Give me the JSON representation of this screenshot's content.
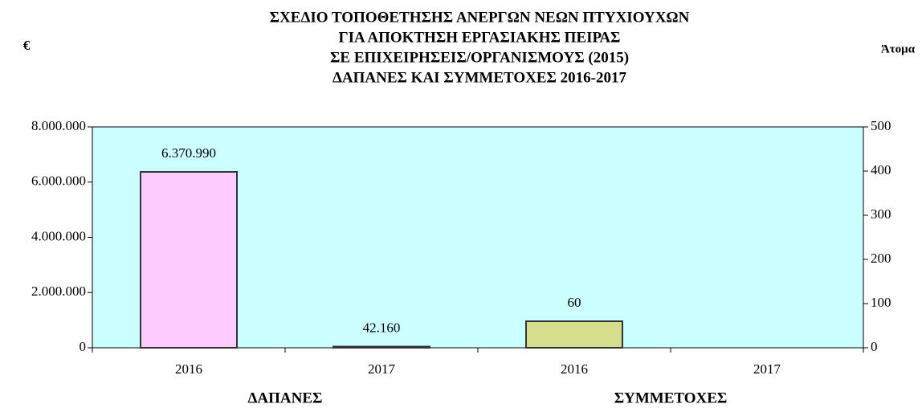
{
  "chart_data": {
    "type": "bar",
    "title": [
      "ΣΧΕΔΙΟ ΤΟΠΟΘΕΤΗΣΗΣ ΑΝΕΡΓΩΝ ΝΕΩΝ ΠΤΥΧΙΟΥΧΩΝ",
      "ΓΙΑ ΑΠΟΚΤΗΣΗ ΕΡΓΑΣΙΑΚΗΣ ΠΕΙΡΑΣ",
      "ΣΕ ΕΠΙΧΕΙΡΗΣΕΙΣ/ΟΡΓΑΝΙΣΜΟΥΣ (2015)",
      "ΔΑΠΑΝΕΣ ΚΑΙ ΣΥΜΜΕΤΟΧΕΣ 2016-2017"
    ],
    "y_label": "€",
    "y2_label": "Άτομα",
    "categories": [
      "2016",
      "2017",
      "2016",
      "2017"
    ],
    "groups": [
      "ΔΑΠΑΝΕΣ",
      "ΣΥΜΜΕΤΟΧΕΣ"
    ],
    "series": [
      {
        "color": "#ffccff",
        "axis": "y",
        "values": [
          6370990,
          42160,
          null,
          null
        ],
        "value_labels": [
          "6.370.990",
          "42.160",
          null,
          null
        ]
      },
      {
        "color": "#d6de8e",
        "axis": "y2",
        "values": [
          null,
          null,
          60,
          null
        ]
      }
    ],
    "ylim": [
      0,
      8000000
    ],
    "yticks": [
      0,
      {
        "value": 2000000,
        "label": "2.000.000"
      },
      {
        "value": 4000000,
        "label": "4.000.000"
      },
      {
        "value": 6000000,
        "label": "6.000.000"
      },
      {
        "value": 8000000,
        "label": "8.000.000"
      }
    ],
    "y2lim": [
      0,
      500
    ],
    "y2ticks": [
      0,
      100,
      200,
      300,
      400,
      500
    ],
    "plot_background": "#ccffff"
  }
}
